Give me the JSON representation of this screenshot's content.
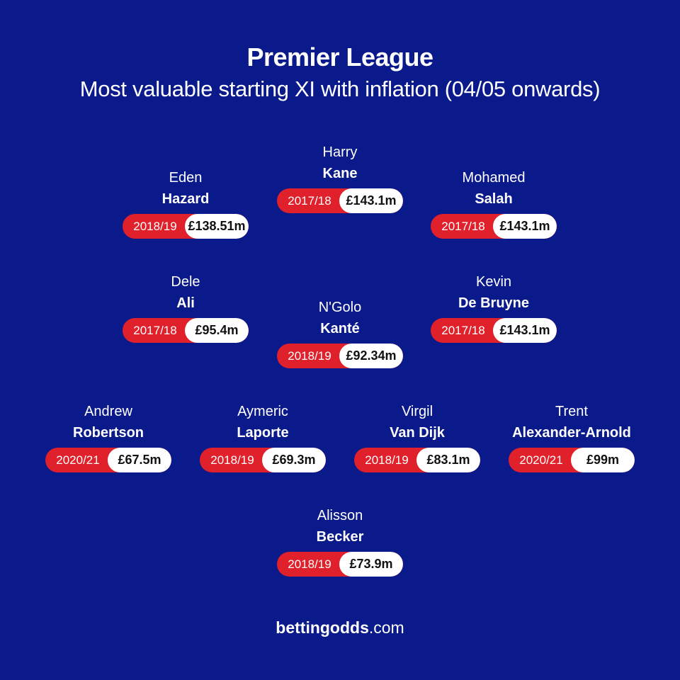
{
  "header": {
    "title": "Premier League",
    "subtitle": "Most valuable starting XI with inflation (04/05 onwards)"
  },
  "players": {
    "kane": {
      "first": "Harry",
      "last": "Kane",
      "season": "2017/18",
      "value": "£143.1m"
    },
    "hazard": {
      "first": "Eden",
      "last": "Hazard",
      "season": "2018/19",
      "value": "£138.51m"
    },
    "salah": {
      "first": "Mohamed",
      "last": "Salah",
      "season": "2017/18",
      "value": "£143.1m"
    },
    "ali": {
      "first": "Dele",
      "last": "Ali",
      "season": "2017/18",
      "value": "£95.4m"
    },
    "kante": {
      "first": "N'Golo",
      "last": "Kanté",
      "season": "2018/19",
      "value": "£92.34m"
    },
    "debruyne": {
      "first": "Kevin",
      "last": "De Bruyne",
      "season": "2017/18",
      "value": "£143.1m"
    },
    "robertson": {
      "first": "Andrew",
      "last": "Robertson",
      "season": "2020/21",
      "value": "£67.5m"
    },
    "laporte": {
      "first": "Aymeric",
      "last": "Laporte",
      "season": "2018/19",
      "value": "£69.3m"
    },
    "vandijk": {
      "first": "Virgil",
      "last": "Van Dijk",
      "season": "2018/19",
      "value": "£83.1m"
    },
    "trent": {
      "first": "Trent",
      "last": "Alexander-Arnold",
      "season": "2020/21",
      "value": "£99m"
    },
    "becker": {
      "first": "Alisson",
      "last": "Becker",
      "season": "2018/19",
      "value": "£73.9m"
    }
  },
  "footer": {
    "brand_bold": "bettingodds",
    "brand_light": ".com"
  },
  "colors": {
    "background": "#0b1a8a",
    "season_pill": "#e0202a",
    "value_pill": "#ffffff"
  }
}
